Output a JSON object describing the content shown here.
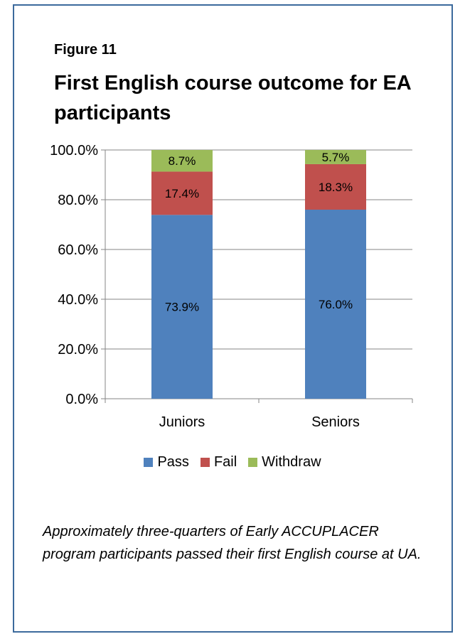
{
  "figure_label": "Figure 11",
  "title": "First English course outcome for EA participants",
  "caption": "Approximately three-quarters of Early ACCUPLACER program participants passed their first English course at UA.",
  "chart_data": {
    "type": "bar",
    "stacked": true,
    "categories": [
      "Juniors",
      "Seniors"
    ],
    "series": [
      {
        "name": "Pass",
        "values": [
          73.9,
          76.0
        ],
        "labels": [
          "73.9%",
          "76.0%"
        ],
        "color": "#4f81bd"
      },
      {
        "name": "Fail",
        "values": [
          17.4,
          18.3
        ],
        "labels": [
          "17.4%",
          "18.3%"
        ],
        "color": "#c0504d"
      },
      {
        "name": "Withdraw",
        "values": [
          8.7,
          5.7
        ],
        "labels": [
          "8.7%",
          "5.7%"
        ],
        "color": "#9bbb59"
      }
    ],
    "ylim": [
      0,
      100
    ],
    "yticks": [
      "0.0%",
      "20.0%",
      "40.0%",
      "60.0%",
      "80.0%",
      "100.0%"
    ],
    "xlabel": "",
    "ylabel": "",
    "grid": true,
    "legend_position": "bottom"
  }
}
